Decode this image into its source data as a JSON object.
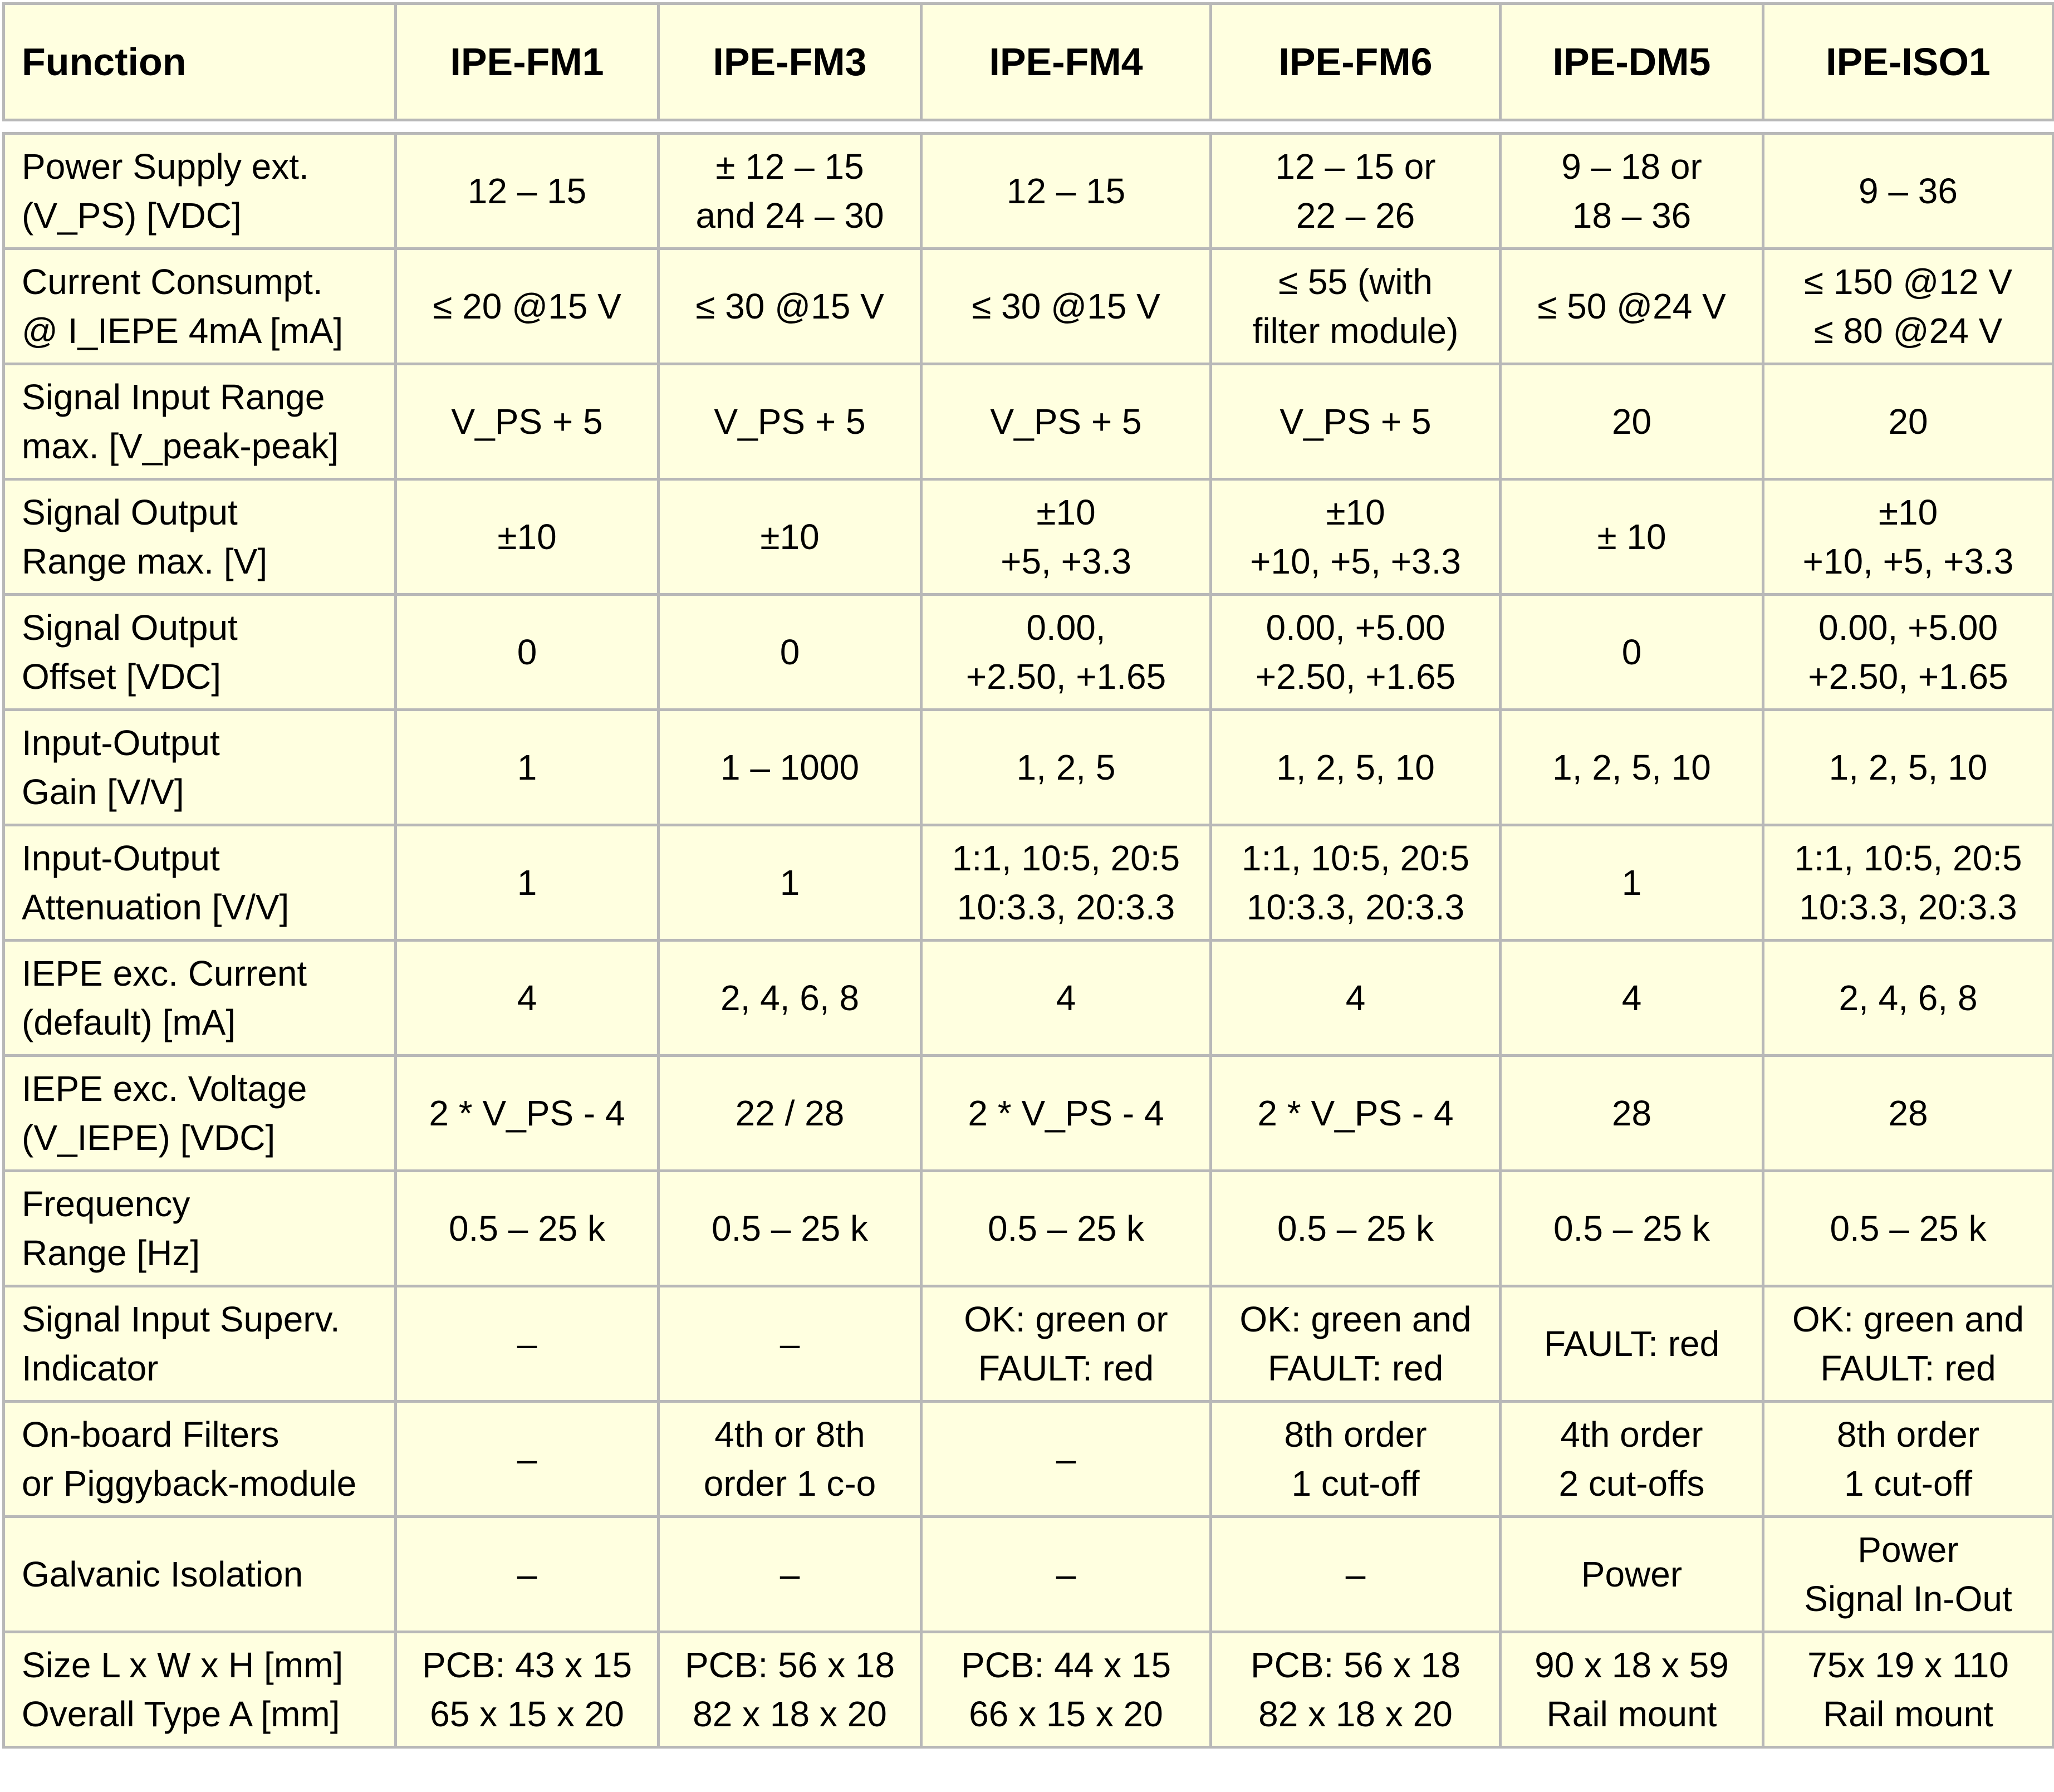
{
  "header": {
    "function": "Function",
    "models": [
      "IPE-FM1",
      "IPE-FM3",
      "IPE-FM4",
      "IPE-FM6",
      "IPE-DM5",
      "IPE-ISO1"
    ]
  },
  "rows": [
    {
      "label": [
        "Power Supply ext.",
        "(V_PS) [VDC]"
      ],
      "cells": [
        [
          "12 – 15"
        ],
        [
          "± 12 – 15",
          "and 24 – 30"
        ],
        [
          "12 – 15"
        ],
        [
          "12 – 15 or",
          "22 – 26"
        ],
        [
          "9 – 18 or",
          "18 – 36"
        ],
        [
          "9 – 36"
        ]
      ]
    },
    {
      "label": [
        "Current Consumpt.",
        "@ I_IEPE 4mA [mA]"
      ],
      "cells": [
        [
          "≤ 20 @15 V"
        ],
        [
          "≤ 30 @15 V"
        ],
        [
          "≤ 30 @15 V"
        ],
        [
          "≤ 55 (with",
          "filter module)"
        ],
        [
          "≤ 50 @24 V"
        ],
        [
          "≤ 150 @12 V",
          "≤ 80 @24 V"
        ]
      ]
    },
    {
      "label": [
        "Signal Input Range",
        "max. [V_peak-peak]"
      ],
      "cells": [
        [
          "V_PS  + 5"
        ],
        [
          "V_PS  + 5"
        ],
        [
          "V_PS  + 5"
        ],
        [
          "V_PS  + 5"
        ],
        [
          "20"
        ],
        [
          "20"
        ]
      ]
    },
    {
      "label": [
        "Signal Output",
        "Range max. [V]"
      ],
      "cells": [
        [
          "±10"
        ],
        [
          "±10"
        ],
        [
          "±10",
          "+5, +3.3"
        ],
        [
          "±10",
          "+10, +5, +3.3"
        ],
        [
          "± 10"
        ],
        [
          "±10",
          "+10, +5, +3.3"
        ]
      ]
    },
    {
      "label": [
        "Signal Output",
        "Offset [VDC]"
      ],
      "cells": [
        [
          "0"
        ],
        [
          "0"
        ],
        [
          "0.00,",
          "+2.50, +1.65"
        ],
        [
          "0.00, +5.00",
          "+2.50, +1.65"
        ],
        [
          "0"
        ],
        [
          "0.00, +5.00",
          "+2.50, +1.65"
        ]
      ]
    },
    {
      "label": [
        "Input-Output",
        "Gain [V/V]"
      ],
      "cells": [
        [
          "1"
        ],
        [
          "1 – 1000"
        ],
        [
          "1, 2, 5"
        ],
        [
          "1, 2, 5, 10"
        ],
        [
          "1, 2, 5, 10"
        ],
        [
          "1, 2, 5, 10"
        ]
      ]
    },
    {
      "label": [
        "Input-Output",
        "Attenuation [V/V]"
      ],
      "cells": [
        [
          "1"
        ],
        [
          "1"
        ],
        [
          "1:1, 10:5, 20:5",
          "10:3.3, 20:3.3"
        ],
        [
          "1:1, 10:5, 20:5",
          "10:3.3, 20:3.3"
        ],
        [
          "1"
        ],
        [
          "1:1, 10:5, 20:5",
          "10:3.3, 20:3.3"
        ]
      ]
    },
    {
      "label": [
        "IEPE exc. Current",
        "(default) [mA]"
      ],
      "cells": [
        [
          "4"
        ],
        [
          "2, 4, 6, 8"
        ],
        [
          "4"
        ],
        [
          "4"
        ],
        [
          "4"
        ],
        [
          "2, 4, 6, 8"
        ]
      ]
    },
    {
      "label": [
        "IEPE exc. Voltage",
        "(V_IEPE) [VDC]"
      ],
      "cells": [
        [
          "2 * V_PS  - 4"
        ],
        [
          "22 / 28"
        ],
        [
          "2 * V_PS  - 4"
        ],
        [
          "2 * V_PS  - 4"
        ],
        [
          "28"
        ],
        [
          "28"
        ]
      ]
    },
    {
      "label": [
        "Frequency",
        "Range [Hz]"
      ],
      "cells": [
        [
          "0.5 – 25 k"
        ],
        [
          "0.5 – 25 k"
        ],
        [
          "0.5 – 25 k"
        ],
        [
          "0.5 – 25 k"
        ],
        [
          "0.5 – 25 k"
        ],
        [
          "0.5 – 25 k"
        ]
      ]
    },
    {
      "label": [
        "Signal Input Superv.",
        "Indicator"
      ],
      "cells": [
        [
          "–"
        ],
        [
          "–"
        ],
        [
          "OK: green or",
          "FAULT: red"
        ],
        [
          "OK: green and",
          "FAULT: red"
        ],
        [
          "FAULT: red"
        ],
        [
          "OK: green and",
          "FAULT: red"
        ]
      ]
    },
    {
      "label": [
        "On-board Filters",
        "or Piggyback-module"
      ],
      "cells": [
        [
          "–"
        ],
        [
          "4th or 8th",
          "order 1 c-o"
        ],
        [
          "–"
        ],
        [
          "8th order",
          "1 cut-off"
        ],
        [
          "4th order",
          "2 cut-offs"
        ],
        [
          "8th order",
          "1 cut-off"
        ]
      ]
    },
    {
      "label": [
        "Galvanic Isolation"
      ],
      "cells": [
        [
          "–"
        ],
        [
          "–"
        ],
        [
          "–"
        ],
        [
          "–"
        ],
        [
          "Power"
        ],
        [
          "Power",
          "Signal In-Out"
        ]
      ]
    },
    {
      "label": [
        "Size L x W x H [mm]",
        "Overall Type A [mm]"
      ],
      "cells": [
        [
          "PCB: 43 x 15",
          "65 x 15 x 20"
        ],
        [
          "PCB: 56 x 18",
          "82 x 18 x 20"
        ],
        [
          "PCB: 44 x 15",
          "66 x 15 x 20"
        ],
        [
          "PCB: 56 x 18",
          "82 x 18 x 20"
        ],
        [
          "90 x 18 x 59",
          "Rail mount"
        ],
        [
          "75x 19 x 110",
          "Rail mount"
        ]
      ]
    }
  ]
}
